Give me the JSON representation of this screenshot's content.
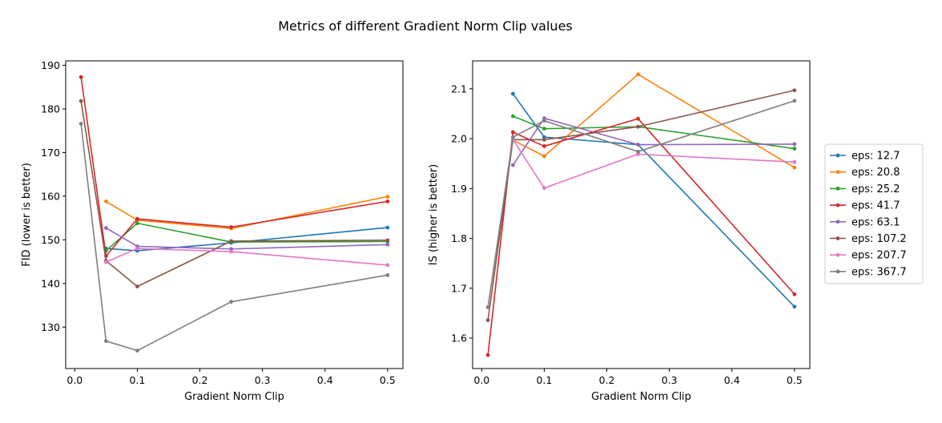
{
  "figure": {
    "title": "Metrics of different Gradient Norm Clip values"
  },
  "colors": [
    "#1f77b4",
    "#ff7f0e",
    "#2ca02c",
    "#d62728",
    "#9467bd",
    "#8c564b",
    "#e377c2",
    "#7f7f7f"
  ],
  "legend": {
    "placement": "right-outside",
    "entries": [
      "eps: 12.7",
      "eps: 20.8",
      "eps: 25.2",
      "eps: 41.7",
      "eps: 63.1",
      "eps: 107.2",
      "eps: 207.7",
      "eps: 367.7"
    ]
  },
  "chart_data": [
    {
      "type": "line",
      "xlabel": "Gradient Norm Clip",
      "ylabel": "FID (lower is better)",
      "xlim": [
        -0.0145,
        0.5245
      ],
      "ylim": [
        120.5,
        191.0
      ],
      "xticks": [
        0.0,
        0.1,
        0.2,
        0.3,
        0.4,
        0.5
      ],
      "xtick_labels": [
        "0.0",
        "0.1",
        "0.2",
        "0.3",
        "0.4",
        "0.5"
      ],
      "yticks": [
        130,
        140,
        150,
        160,
        170,
        180,
        190
      ],
      "ytick_labels": [
        "130",
        "140",
        "150",
        "160",
        "170",
        "180",
        "190"
      ],
      "grid": false,
      "series": [
        {
          "name": "eps: 12.7",
          "x": [
            0.05,
            0.1,
            0.25,
            0.5
          ],
          "y": [
            148.0,
            147.5,
            149.3,
            152.8
          ]
        },
        {
          "name": "eps: 20.8",
          "x": [
            0.05,
            0.1,
            0.25,
            0.5
          ],
          "y": [
            158.8,
            154.5,
            152.6,
            159.9
          ]
        },
        {
          "name": "eps: 25.2",
          "x": [
            0.05,
            0.1,
            0.25,
            0.5
          ],
          "y": [
            147.5,
            153.8,
            149.5,
            149.6
          ]
        },
        {
          "name": "eps: 41.7",
          "x": [
            0.01,
            0.05,
            0.1,
            0.25,
            0.5
          ],
          "y": [
            187.3,
            146.3,
            154.8,
            152.9,
            158.8
          ]
        },
        {
          "name": "eps: 63.1",
          "x": [
            0.05,
            0.1,
            0.25,
            0.5
          ],
          "y": [
            152.7,
            148.5,
            147.9,
            148.9
          ]
        },
        {
          "name": "eps: 107.2",
          "x": [
            0.01,
            0.05,
            0.1,
            0.25,
            0.5
          ],
          "y": [
            181.8,
            145.2,
            139.3,
            149.7,
            149.9
          ]
        },
        {
          "name": "eps: 207.7",
          "x": [
            0.05,
            0.1,
            0.25,
            0.5
          ],
          "y": [
            144.9,
            148.0,
            147.3,
            144.2
          ]
        },
        {
          "name": "eps: 367.7",
          "x": [
            0.01,
            0.05,
            0.1,
            0.25,
            0.5
          ],
          "y": [
            176.6,
            126.8,
            124.6,
            135.8,
            141.9
          ]
        }
      ]
    },
    {
      "type": "line",
      "xlabel": "Gradient Norm Clip",
      "ylabel": "IS (higher is better)",
      "xlim": [
        -0.0145,
        0.5245
      ],
      "ylim": [
        1.539,
        2.156
      ],
      "xticks": [
        0.0,
        0.1,
        0.2,
        0.3,
        0.4,
        0.5
      ],
      "xtick_labels": [
        "0.0",
        "0.1",
        "0.2",
        "0.3",
        "0.4",
        "0.5"
      ],
      "yticks": [
        1.6,
        1.7,
        1.8,
        1.9,
        2.0,
        2.1
      ],
      "ytick_labels": [
        "1.6",
        "1.7",
        "1.8",
        "1.9",
        "2.0",
        "2.1"
      ],
      "grid": false,
      "series": [
        {
          "name": "eps: 12.7",
          "x": [
            0.05,
            0.1,
            0.25,
            0.5
          ],
          "y": [
            2.09,
            2.003,
            1.988,
            1.663
          ]
        },
        {
          "name": "eps: 20.8",
          "x": [
            0.05,
            0.1,
            0.25,
            0.5
          ],
          "y": [
            1.997,
            1.965,
            2.129,
            1.942
          ]
        },
        {
          "name": "eps: 25.2",
          "x": [
            0.05,
            0.1,
            0.25,
            0.5
          ],
          "y": [
            2.045,
            2.02,
            2.024,
            1.98
          ]
        },
        {
          "name": "eps: 41.7",
          "x": [
            0.01,
            0.05,
            0.1,
            0.25,
            0.5
          ],
          "y": [
            1.566,
            2.013,
            1.985,
            2.04,
            1.688
          ]
        },
        {
          "name": "eps: 63.1",
          "x": [
            0.05,
            0.1,
            0.25,
            0.5
          ],
          "y": [
            1.947,
            2.041,
            1.988,
            1.989
          ]
        },
        {
          "name": "eps: 107.2",
          "x": [
            0.01,
            0.05,
            0.1,
            0.25,
            0.5
          ],
          "y": [
            1.636,
            1.998,
            1.998,
            2.024,
            2.097
          ]
        },
        {
          "name": "eps: 207.7",
          "x": [
            0.05,
            0.1,
            0.25,
            0.5
          ],
          "y": [
            1.998,
            1.901,
            1.969,
            1.953
          ]
        },
        {
          "name": "eps: 367.7",
          "x": [
            0.01,
            0.05,
            0.1,
            0.25,
            0.5
          ],
          "y": [
            1.662,
            2.003,
            2.036,
            1.974,
            2.076
          ]
        }
      ]
    }
  ]
}
